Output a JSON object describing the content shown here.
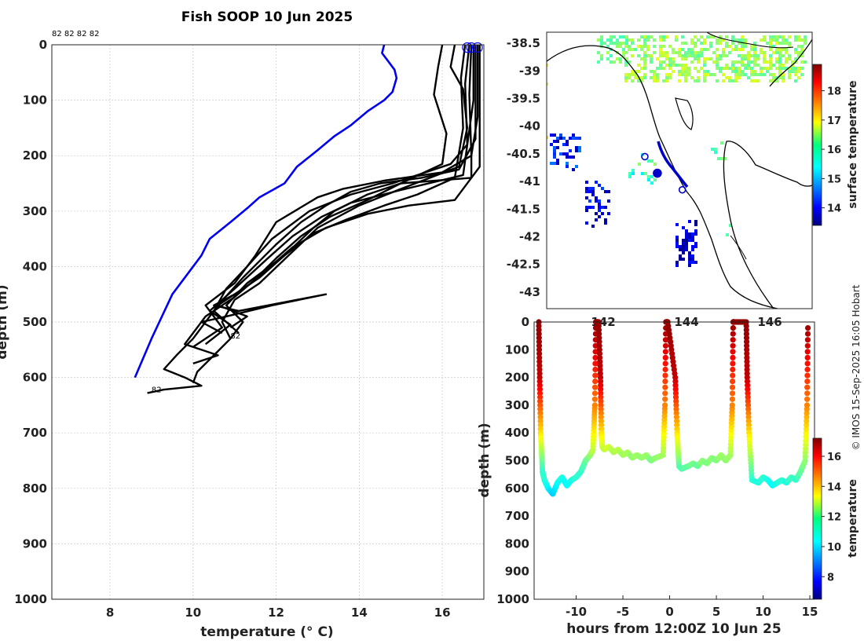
{
  "title": "Fish SOOP 10 Jun 2025",
  "credit": "© IMOS 15-Sep-2025 16:05 Hobart",
  "colors": {
    "profile_blue": "#0000ee",
    "profile_black": "#000000"
  },
  "chart_data": [
    {
      "name": "profiles",
      "type": "line",
      "xlabel": "temperature (° C)",
      "ylabel": "depth (m)",
      "xlim": [
        6.6,
        17.0
      ],
      "ylim": [
        0,
        1000
      ],
      "y_reversed": true,
      "xticks": [
        8,
        10,
        12,
        14,
        16
      ],
      "yticks": [
        0,
        100,
        200,
        300,
        400,
        500,
        600,
        700,
        800,
        900,
        1000
      ],
      "grid": true,
      "top_annotation": "82 82 82 82",
      "annotations": [
        {
          "text": "82",
          "x": 10.9,
          "y": 530
        },
        {
          "text": "82",
          "x": 9.0,
          "y": 627
        }
      ],
      "series": [
        {
          "name": "blue-profile",
          "color": "#0000ee",
          "x": [
            14.6,
            14.55,
            14.7,
            14.85,
            14.9,
            14.8,
            14.6,
            14.2,
            13.8,
            13.4,
            13.0,
            12.5,
            12.2,
            11.6,
            11.3,
            10.9,
            10.4,
            10.2,
            9.5,
            9.0,
            8.6
          ],
          "y": [
            0,
            15,
            30,
            45,
            60,
            85,
            100,
            120,
            145,
            165,
            190,
            220,
            250,
            275,
            295,
            320,
            350,
            380,
            450,
            530,
            600
          ]
        },
        {
          "name": "black-profile-1",
          "color": "#000000",
          "x": [
            16.85,
            16.85,
            16.7,
            16.7,
            15.0,
            14.2,
            13.4,
            12.9,
            12.2,
            11.3,
            10.8,
            11.2,
            10.9
          ],
          "y": [
            0,
            130,
            200,
            240,
            250,
            270,
            300,
            330,
            380,
            430,
            470,
            500,
            530
          ]
        },
        {
          "name": "black-profile-2",
          "color": "#000000",
          "x": [
            16.3,
            16.2,
            16.5,
            16.6,
            16.4,
            15.0,
            14.0,
            13.0,
            12.3,
            11.6,
            11.0,
            10.7,
            10.9,
            10.5,
            10.1,
            10.0
          ],
          "y": [
            0,
            40,
            80,
            150,
            220,
            260,
            290,
            330,
            380,
            430,
            460,
            500,
            530,
            560,
            590,
            610
          ]
        },
        {
          "name": "black-profile-3",
          "color": "#000000",
          "x": [
            16.8,
            16.8,
            16.4,
            15.5,
            14.5,
            13.8,
            13.2,
            12.6,
            12.0,
            11.2,
            10.6,
            10.0,
            9.6,
            9.3,
            9.8,
            10.2,
            9.3,
            8.9
          ],
          "y": [
            0,
            170,
            225,
            240,
            250,
            265,
            290,
            320,
            360,
            420,
            470,
            530,
            560,
            585,
            600,
            615,
            622,
            628
          ]
        },
        {
          "name": "black-profile-4",
          "color": "#000000",
          "x": [
            16.7,
            16.65,
            16.7,
            16.0,
            14.6,
            13.6,
            13.0,
            12.0,
            11.5,
            11.0,
            10.3,
            10.7,
            10.0
          ],
          "y": [
            0,
            90,
            200,
            230,
            245,
            260,
            275,
            320,
            380,
            430,
            470,
            510,
            545
          ]
        },
        {
          "name": "black-profile-5",
          "color": "#000000",
          "x": [
            16.65,
            16.55,
            16.6,
            16.2,
            15.6,
            14.8,
            13.8,
            12.8,
            11.9,
            11.3,
            10.8,
            10.5,
            11.1
          ],
          "y": [
            0,
            70,
            180,
            215,
            230,
            250,
            270,
            300,
            350,
            400,
            440,
            480,
            520
          ]
        },
        {
          "name": "black-profile-6",
          "color": "#000000",
          "x": [
            16.0,
            15.9,
            15.8,
            16.1,
            16.0,
            15.0,
            14.2,
            13.3,
            12.6,
            12.0,
            11.4,
            10.9,
            10.6,
            11.3,
            10.9
          ],
          "y": [
            0,
            40,
            90,
            160,
            215,
            250,
            280,
            310,
            345,
            385,
            430,
            455,
            470,
            490,
            510
          ]
        },
        {
          "name": "black-profile-7",
          "color": "#000000",
          "x": [
            16.9,
            16.9,
            16.3,
            15.2,
            14.2,
            13.2,
            12.4,
            11.7,
            11.0,
            10.3,
            9.8,
            10.6,
            10.0
          ],
          "y": [
            0,
            220,
            280,
            290,
            305,
            330,
            365,
            410,
            455,
            490,
            540,
            560,
            575
          ]
        },
        {
          "name": "black-profile-8",
          "color": "#000000",
          "x": [
            16.75,
            16.75,
            16.5,
            15.0,
            13.8,
            13.1,
            12.4,
            11.8,
            11.0,
            10.4,
            10.9,
            10.3
          ],
          "y": [
            0,
            100,
            235,
            262,
            285,
            310,
            345,
            385,
            440,
            480,
            505,
            540
          ]
        },
        {
          "name": "black-profile-9",
          "color": "#000000",
          "x": [
            16.55,
            16.45,
            16.5,
            16.3,
            15.4,
            14.6,
            13.7,
            12.9,
            12.2,
            11.6,
            11.0,
            10.5,
            11.1,
            13.2,
            11.9,
            10.8,
            10.2,
            10.7
          ],
          "y": [
            0,
            60,
            150,
            240,
            270,
            290,
            315,
            340,
            380,
            420,
            450,
            470,
            480,
            450,
            470,
            490,
            500,
            520
          ]
        }
      ],
      "surface_markers": {
        "x": [
          16.6,
          16.7,
          16.85
        ],
        "y": [
          5,
          5,
          5
        ]
      }
    },
    {
      "name": "map",
      "type": "heatmap",
      "ylim": [
        -43.3,
        -38.3
      ],
      "yticks": [
        -38.5,
        -39,
        -39.5,
        -40,
        -40.5,
        -41,
        -41.5,
        -42,
        -42.5,
        -43
      ],
      "xticks": [
        "142",
        "144",
        "146"
      ],
      "colorbar_label": "surface temperature",
      "colorbar_ticks": [
        14,
        15,
        16,
        17,
        18
      ],
      "colorbar_range": [
        13.4,
        18.9
      ],
      "track_stations": [
        {
          "lon": 143.0,
          "lat": -40.55
        },
        {
          "lon": 143.3,
          "lat": -40.85
        },
        {
          "lon": 143.9,
          "lat": -41.15
        }
      ]
    },
    {
      "name": "depth-time",
      "type": "scatter",
      "xlabel": "hours from 12:00Z 10 Jun 25",
      "ylabel": "depth (m)",
      "xlim": [
        -14.5,
        15.5
      ],
      "ylim": [
        0,
        1000
      ],
      "y_reversed": true,
      "xticks": [
        -10,
        -5,
        0,
        5,
        10,
        15
      ],
      "yticks": [
        0,
        100,
        200,
        300,
        400,
        500,
        600,
        700,
        800,
        900,
        1000
      ],
      "colorbar_label": "temperature",
      "colorbar_ticks": [
        8,
        10,
        12,
        14,
        16
      ],
      "colorbar_range": [
        6.5,
        17.2
      ],
      "track": {
        "t": [
          -14.0,
          -13.9,
          -13.8,
          -13.6,
          -13.4,
          -13.0,
          -12.5,
          -12.0,
          -11.5,
          -11.0,
          -10.5,
          -10.0,
          -9.5,
          -9.0,
          -8.5,
          -8.2,
          -8.0,
          -7.9,
          -7.6,
          -7.4,
          -7.3,
          -7.2,
          -7.0,
          -6.5,
          -6.0,
          -5.5,
          -5.0,
          -4.5,
          -4.0,
          -3.5,
          -3.0,
          -2.5,
          -2.0,
          -1.5,
          -0.7,
          -0.5,
          -0.4,
          -0.2,
          0.6,
          0.8,
          1.0,
          1.3,
          1.6,
          2.0,
          2.5,
          3.0,
          3.5,
          4.0,
          4.5,
          5.0,
          5.5,
          6.0,
          6.5,
          6.7,
          6.8,
          6.9,
          8.2,
          8.3,
          8.5,
          8.8,
          9.5,
          10.0,
          10.5,
          11.0,
          11.5,
          12.0,
          12.5,
          13.0,
          13.5,
          14.0,
          14.5,
          14.7,
          14.8
        ],
        "depth": [
          0,
          200,
          400,
          540,
          570,
          600,
          620,
          580,
          560,
          590,
          570,
          560,
          540,
          500,
          480,
          460,
          300,
          0,
          0,
          200,
          400,
          450,
          460,
          450,
          470,
          460,
          480,
          470,
          490,
          480,
          490,
          480,
          500,
          490,
          480,
          300,
          0,
          0,
          200,
          400,
          520,
          530,
          525,
          520,
          510,
          520,
          500,
          510,
          490,
          500,
          480,
          500,
          480,
          300,
          0,
          0,
          0,
          200,
          400,
          570,
          580,
          560,
          570,
          590,
          580,
          570,
          580,
          560,
          570,
          540,
          500,
          300,
          0
        ],
        "temperature": [
          17,
          16.5,
          13.5,
          11,
          11,
          10.5,
          10,
          10.5,
          10.8,
          10.5,
          10.7,
          11,
          11,
          11.5,
          12,
          12.5,
          14.5,
          17,
          17,
          16.5,
          13.5,
          12.8,
          12.5,
          12.8,
          12.3,
          12.5,
          12.2,
          12.3,
          12,
          12.2,
          12,
          12.2,
          11.8,
          12,
          12.2,
          14.5,
          17,
          17,
          16.5,
          13.5,
          11.5,
          11.3,
          11.5,
          11.5,
          11.8,
          11.5,
          12,
          11.8,
          12,
          11.8,
          12.2,
          12,
          12.2,
          14.5,
          17,
          17,
          17,
          16.5,
          13.5,
          11,
          10.8,
          11,
          10.8,
          10.5,
          10.8,
          11,
          10.8,
          11.2,
          11,
          11.5,
          12,
          14.5,
          17
        ]
      }
    }
  ]
}
